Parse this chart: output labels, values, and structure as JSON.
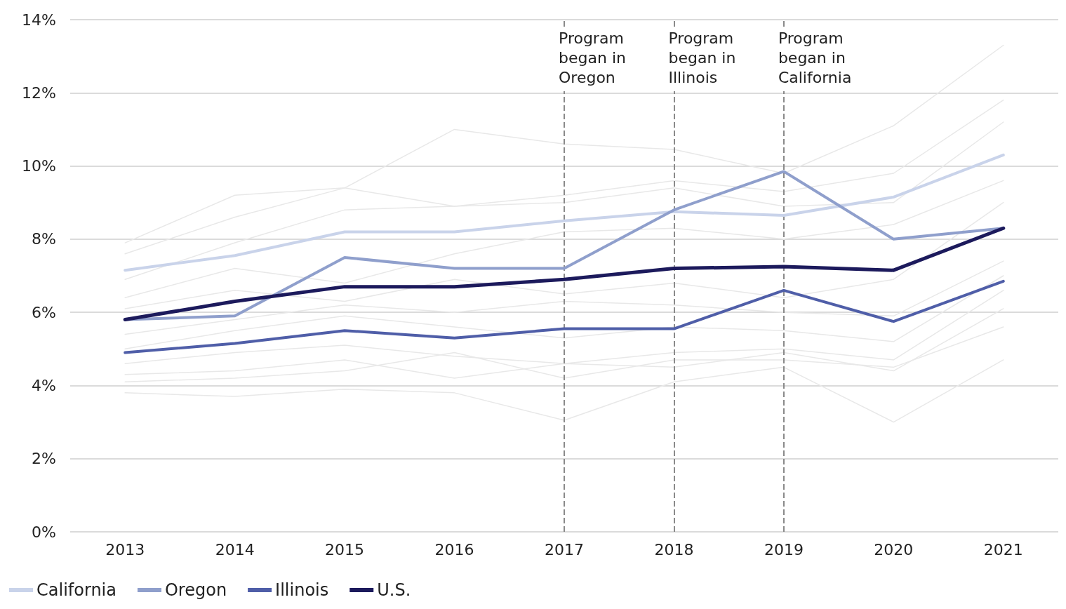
{
  "chart_data": {
    "type": "line",
    "categories": [
      "2013",
      "2014",
      "2015",
      "2016",
      "2017",
      "2018",
      "2019",
      "2020",
      "2021"
    ],
    "series": [
      {
        "color": "#e8e8e8",
        "values": [
          7.9,
          9.2,
          9.4,
          11.0,
          10.6,
          10.45,
          9.8,
          11.1,
          13.3
        ]
      },
      {
        "color": "#e8e8e8",
        "values": [
          7.6,
          8.6,
          9.4,
          8.9,
          9.2,
          9.6,
          9.3,
          9.8,
          11.8
        ]
      },
      {
        "color": "#e8e8e8",
        "values": [
          6.9,
          7.9,
          8.8,
          8.9,
          9.0,
          9.4,
          8.9,
          9.0,
          11.2
        ]
      },
      {
        "color": "#e8e8e8",
        "values": [
          6.4,
          7.2,
          6.8,
          7.6,
          8.2,
          8.3,
          8.0,
          8.4,
          9.6
        ]
      },
      {
        "color": "#e8e8e8",
        "values": [
          6.1,
          6.6,
          6.3,
          6.9,
          6.5,
          6.8,
          6.4,
          6.9,
          9.0
        ]
      },
      {
        "color": "#e8e8e8",
        "values": [
          5.4,
          5.8,
          6.2,
          6.0,
          6.3,
          6.2,
          6.0,
          5.9,
          7.4
        ]
      },
      {
        "color": "#e8e8e8",
        "values": [
          5.0,
          5.5,
          5.9,
          5.6,
          5.3,
          5.6,
          5.5,
          5.2,
          7.0
        ]
      },
      {
        "color": "#e8e8e8",
        "values": [
          4.6,
          4.9,
          5.1,
          4.8,
          4.6,
          4.9,
          5.0,
          4.7,
          6.6
        ]
      },
      {
        "color": "#e8e8e8",
        "values": [
          4.3,
          4.4,
          4.7,
          4.2,
          4.6,
          4.5,
          4.9,
          4.4,
          6.1
        ]
      },
      {
        "color": "#e8e8e8",
        "values": [
          4.1,
          4.2,
          4.4,
          4.9,
          4.2,
          4.7,
          4.7,
          4.5,
          5.6
        ]
      },
      {
        "color": "#e8e8e8",
        "values": [
          3.8,
          3.7,
          3.9,
          3.8,
          3.05,
          4.1,
          4.5,
          3.0,
          4.7
        ]
      },
      {
        "name": "California",
        "color": "#c9d3ea",
        "values": [
          7.15,
          7.55,
          8.2,
          8.2,
          8.5,
          8.75,
          8.65,
          9.15,
          10.3
        ]
      },
      {
        "name": "Oregon",
        "color": "#8f9fcc",
        "values": [
          5.8,
          5.9,
          7.5,
          7.2,
          7.2,
          8.8,
          9.85,
          8.0,
          8.3
        ]
      },
      {
        "name": "Illinois",
        "color": "#4f5ea8",
        "values": [
          4.9,
          5.15,
          5.5,
          5.3,
          5.55,
          5.55,
          6.6,
          5.75,
          6.85
        ]
      },
      {
        "name": "U.S.",
        "color": "#1c1a5c",
        "values": [
          5.8,
          6.3,
          6.7,
          6.7,
          6.9,
          7.2,
          7.25,
          7.15,
          8.3
        ]
      }
    ],
    "ylim": [
      0,
      14
    ],
    "yticks": [
      {
        "value": 0,
        "label": "0%"
      },
      {
        "value": 2,
        "label": "2%"
      },
      {
        "value": 4,
        "label": "4%"
      },
      {
        "value": 6,
        "label": "6%"
      },
      {
        "value": 8,
        "label": "8%"
      },
      {
        "value": 10,
        "label": "10%"
      },
      {
        "value": 12,
        "label": "12%"
      },
      {
        "value": 14,
        "label": "14%"
      }
    ],
    "ref_lines": [
      {
        "axis": "x",
        "value": "2017",
        "label": "Program began in Oregon",
        "color": "#8a8a8a",
        "line_style": "dashed"
      },
      {
        "axis": "x",
        "value": "2018",
        "label": "Program began in Illinois",
        "color": "#8a8a8a",
        "line_style": "dashed"
      },
      {
        "axis": "x",
        "value": "2019",
        "label": "Program began in California",
        "color": "#8a8a8a",
        "line_style": "dashed"
      }
    ],
    "grid": "y",
    "legend": "bottom left",
    "marker": "none",
    "line_style": "solid"
  }
}
